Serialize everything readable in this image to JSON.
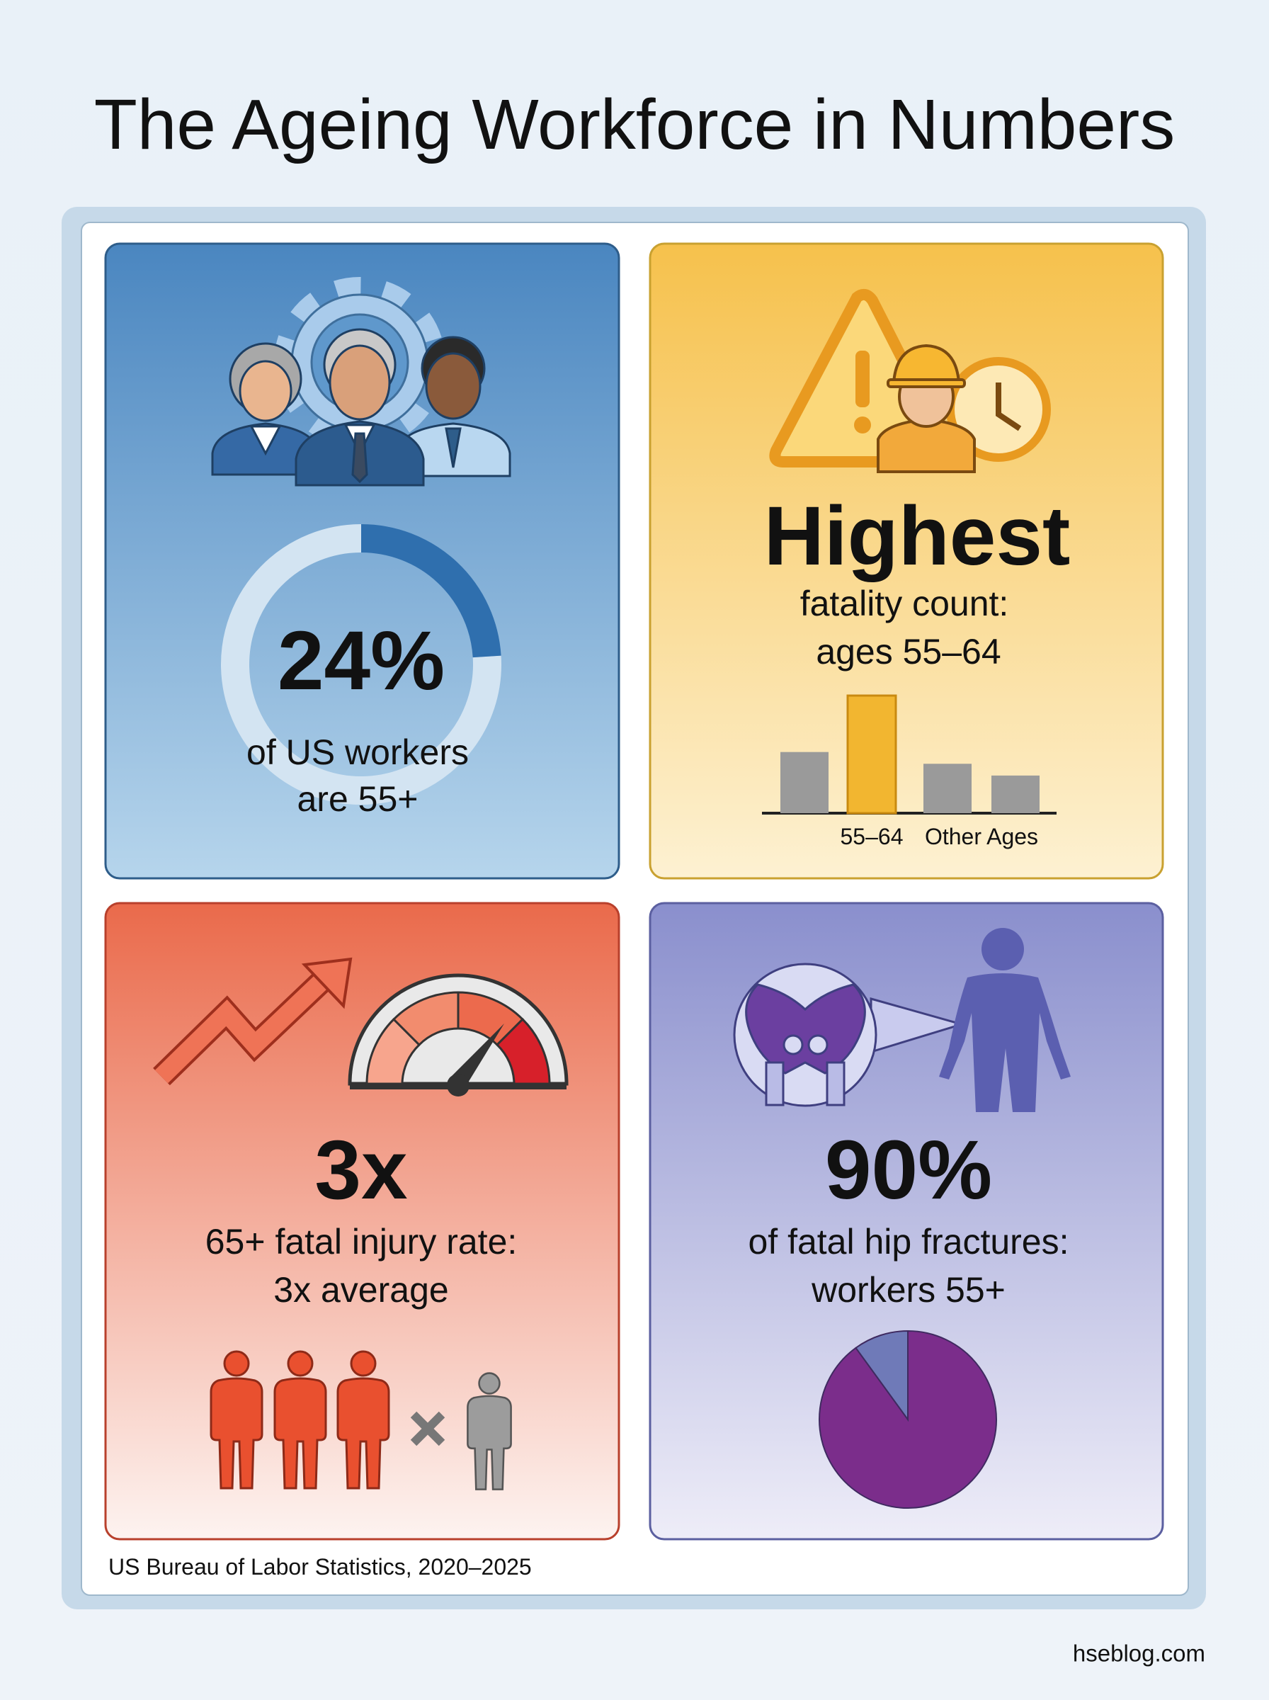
{
  "title": "The Ageing Workforce in Numbers",
  "cards": [
    {
      "donut": {
        "values": [
          24,
          76
        ],
        "value_labels": [
          "24%",
          null
        ],
        "colors": [
          "#2f6fae",
          "#d3e4f2"
        ]
      },
      "caption": [
        "of US workers",
        "are 55+"
      ]
    },
    {
      "headline": "Highest",
      "caption": [
        "fatality count:",
        "ages 55–64"
      ],
      "bars": {
        "categories": [
          null,
          "55–64",
          "Other Ages",
          null
        ],
        "values": [
          52,
          100,
          42,
          32
        ],
        "colors": [
          "#9a9a9a",
          "#f2b630",
          "#9a9a9a",
          "#9a9a9a"
        ]
      }
    },
    {
      "headline": "3x",
      "caption": [
        "65+ fatal injury rate:",
        "3x average"
      ]
    },
    {
      "pie": {
        "values": [
          90,
          10
        ],
        "value_labels": [
          "90%",
          null
        ],
        "colors": [
          "#7b2d8b",
          "#6f7ab8"
        ]
      },
      "caption": [
        "of fatal hip fractures:",
        "workers 55+"
      ]
    }
  ],
  "source": "US Bureau of Labor Statistics, 2020–2025",
  "watermark": "hseblog.com"
}
